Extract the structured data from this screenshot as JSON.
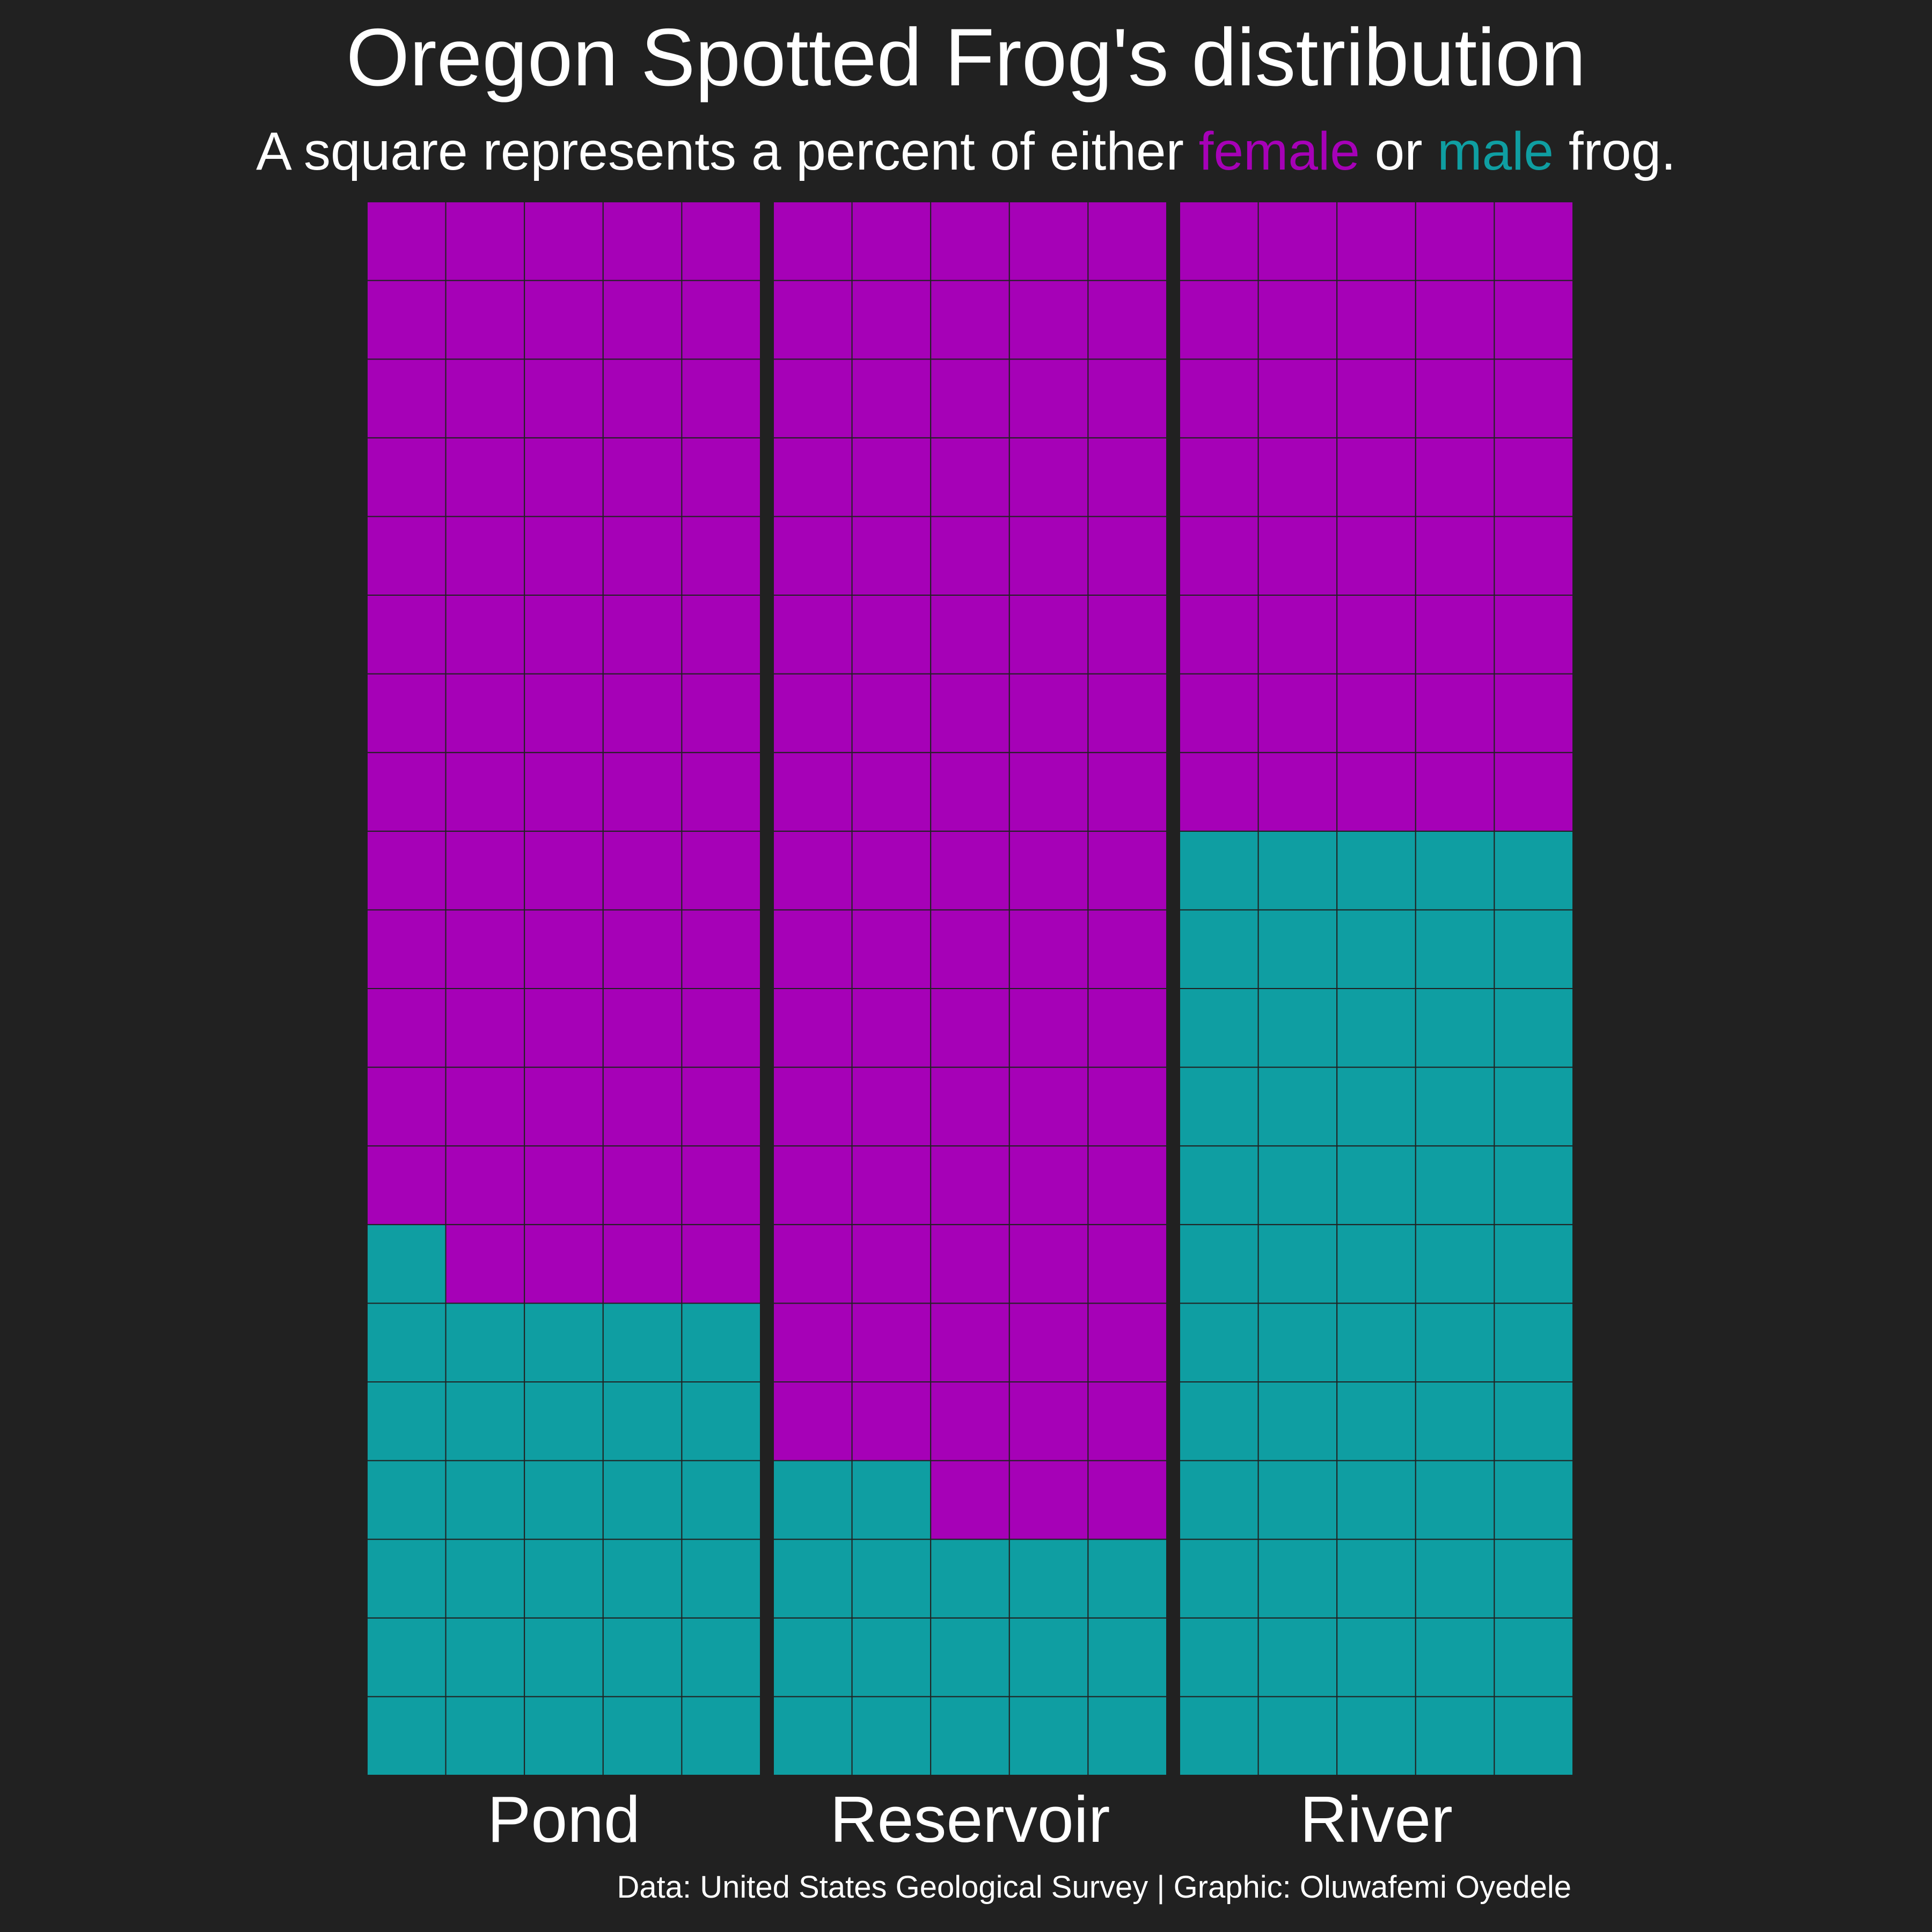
{
  "title": "Oregon Spotted Frog's distribution",
  "subtitle": {
    "before": "A square represents a percent of either ",
    "female": "female",
    "middle": " or ",
    "male": "male",
    "after": " frog."
  },
  "caption": "Data: United States Geological Survey | Graphic: Oluwafemi Oyedele",
  "colors": {
    "background": "#212121",
    "female": "#a601b7",
    "male": "#0f9ea2",
    "text": "#ffffff",
    "cell_border": "#212121"
  },
  "chart_data": {
    "type": "waffle",
    "unit": "percent",
    "categories": [
      "Pond",
      "Reservoir",
      "River"
    ],
    "series": [
      {
        "name": "female",
        "values": [
          69,
          83,
          40
        ]
      },
      {
        "name": "male",
        "values": [
          31,
          17,
          60
        ]
      }
    ],
    "grid": {
      "columns": 5,
      "rows": 20
    },
    "legend": "subtitle"
  }
}
